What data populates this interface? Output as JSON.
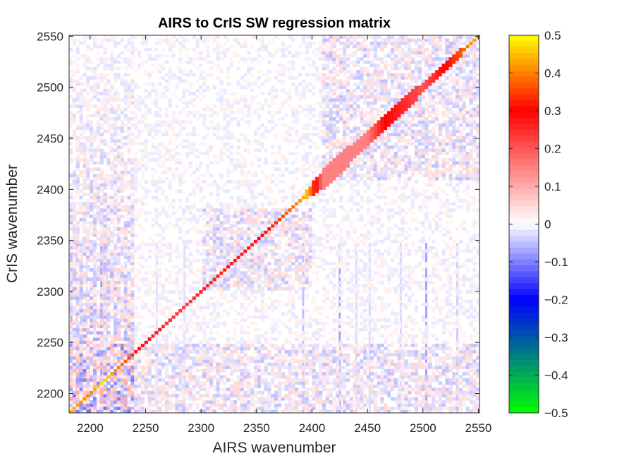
{
  "chart_data": {
    "type": "heatmap",
    "title": "AIRS to CrIS SW regression matrix",
    "xlabel": "AIRS wavenumber",
    "ylabel": "CrIS wavenumber",
    "xlim": [
      2181,
      2551
    ],
    "ylim": [
      2181,
      2551
    ],
    "xticks": [
      2200,
      2250,
      2300,
      2350,
      2400,
      2450,
      2500,
      2550
    ],
    "yticks": [
      2200,
      2250,
      2300,
      2350,
      2400,
      2450,
      2500,
      2550
    ],
    "colorbar": {
      "range": [
        -0.5,
        0.5
      ],
      "ticks": [
        -0.5,
        -0.4,
        -0.3,
        -0.2,
        -0.1,
        0,
        0.1,
        0.2,
        0.3,
        0.4,
        0.5
      ],
      "tick_labels": [
        "−0.5",
        "−0.4",
        "−0.3",
        "−0.2",
        "−0.1",
        "0",
        "0.1",
        "0.2",
        "0.3",
        "0.4",
        "0.5"
      ],
      "colors": [
        "#00ff00",
        "#009a66",
        "#0000ff",
        "#ffffff",
        "#ff0000",
        "#ffff00"
      ]
    },
    "diagonal": [
      {
        "x": 2181,
        "value": 0.45
      },
      {
        "x": 2200,
        "value": 0.4
      },
      {
        "x": 2210,
        "value": 0.48
      },
      {
        "x": 2250,
        "value": 0.28
      },
      {
        "x": 2285,
        "value": 0.22
      },
      {
        "x": 2300,
        "value": 0.26
      },
      {
        "x": 2350,
        "value": 0.28
      },
      {
        "x": 2385,
        "value": 0.4
      },
      {
        "x": 2396,
        "value": 0.45
      },
      {
        "x": 2410,
        "value": 0.15
      },
      {
        "x": 2450,
        "value": 0.15
      },
      {
        "x": 2466,
        "value": 0.3
      },
      {
        "x": 2500,
        "value": 0.2
      },
      {
        "x": 2551,
        "value": 0.45
      }
    ],
    "diagonal_halfwidth_wavenumber": [
      {
        "x": 2181,
        "halfwidth": 2
      },
      {
        "x": 2390,
        "halfwidth": 2
      },
      {
        "x": 2410,
        "halfwidth": 10
      },
      {
        "x": 2470,
        "halfwidth": 8
      },
      {
        "x": 2551,
        "halfwidth": 2
      }
    ],
    "column_artifacts": [
      {
        "x": 2183,
        "value": -0.18
      },
      {
        "x": 2188,
        "value": 0.2
      },
      {
        "x": 2192,
        "value": -0.16
      },
      {
        "x": 2197,
        "value": 0.14
      },
      {
        "x": 2204,
        "value": -0.1
      },
      {
        "x": 2210,
        "value": -0.22
      },
      {
        "x": 2212,
        "value": 0.2
      },
      {
        "x": 2215,
        "value": -0.12
      },
      {
        "x": 2222,
        "value": 0.1
      },
      {
        "x": 2232,
        "value": -0.12
      },
      {
        "x": 2260,
        "value": -0.08
      },
      {
        "x": 2285,
        "value": -0.08
      },
      {
        "x": 2392,
        "value": -0.15
      },
      {
        "x": 2425,
        "value": -0.22
      },
      {
        "x": 2440,
        "value": -0.1
      },
      {
        "x": 2452,
        "value": -0.1
      },
      {
        "x": 2480,
        "value": -0.1
      },
      {
        "x": 2503,
        "value": -0.22
      },
      {
        "x": 2531,
        "value": -0.12
      }
    ]
  }
}
